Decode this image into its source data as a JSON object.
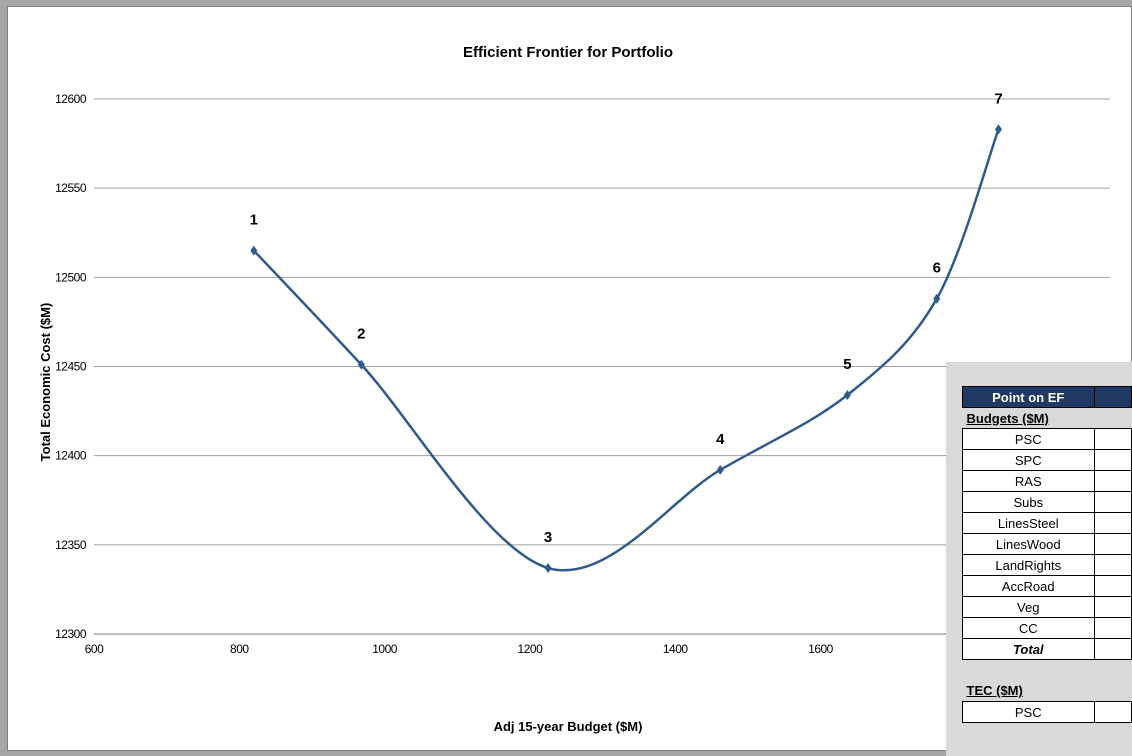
{
  "chart_data": {
    "type": "line",
    "title": "Efficient Frontier for Portfolio",
    "xlabel": "Adj 15-year Budget ($M)",
    "ylabel": "Total Economic Cost ($M)",
    "xlim": [
      600,
      1700
    ],
    "ylim": [
      12300,
      12600
    ],
    "x_ticks": [
      600,
      800,
      1000,
      1200,
      1400,
      1600
    ],
    "y_ticks": [
      12300,
      12350,
      12400,
      12450,
      12500,
      12550,
      12600
    ],
    "grid": "horizontal",
    "line_color": "#2e5a8c",
    "series": [
      {
        "points": [
          {
            "x": 820,
            "y": 12515,
            "label": "1"
          },
          {
            "x": 968,
            "y": 12451,
            "label": "2"
          },
          {
            "x": 1225,
            "y": 12337,
            "label": "3"
          },
          {
            "x": 1462,
            "y": 12392,
            "label": "4"
          },
          {
            "x": 1637,
            "y": 12434,
            "label": "5"
          },
          {
            "x": 1760,
            "y": 12488,
            "label": "6"
          },
          {
            "x": 1845,
            "y": 12583,
            "label": "7"
          }
        ]
      }
    ]
  },
  "legend_table": {
    "header": "Point on EF",
    "budgets_title": "Budgets ($M)",
    "budget_rows": [
      "PSC",
      "SPC",
      "RAS",
      "Subs",
      "LinesSteel",
      "LinesWood",
      "LandRights",
      "AccRoad",
      "Veg",
      "CC"
    ],
    "total_label": "Total",
    "tec_title": "TEC ($M)",
    "tec_rows": [
      "PSC"
    ]
  }
}
